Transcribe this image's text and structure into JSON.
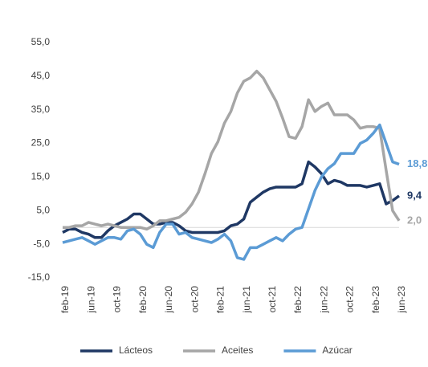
{
  "chart_data": {
    "type": "line",
    "categories": [
      "feb-19",
      null,
      null,
      null,
      "jun-19",
      null,
      null,
      null,
      "oct-19",
      null,
      null,
      null,
      "feb-20",
      null,
      null,
      null,
      "jun-20",
      null,
      null,
      null,
      "oct-20",
      null,
      null,
      null,
      "feb-21",
      null,
      null,
      null,
      "jun-21",
      null,
      null,
      null,
      "oct-21",
      null,
      null,
      null,
      "feb-22",
      null,
      null,
      null,
      "jun-22",
      null,
      null,
      null,
      "oct-22",
      null,
      null,
      null,
      "feb-23",
      null,
      null,
      null,
      "jun-23"
    ],
    "ylim": [
      -15,
      55
    ],
    "yticks": [
      {
        "value": -15,
        "label": "-15,0"
      },
      {
        "value": -5,
        "label": "-5,0"
      },
      {
        "value": 5,
        "label": "5,0"
      },
      {
        "value": 15,
        "label": "15,0"
      },
      {
        "value": 25,
        "label": "25,0"
      },
      {
        "value": 35,
        "label": "35,0"
      },
      {
        "value": 45,
        "label": "45,0"
      },
      {
        "value": 55,
        "label": "55,0"
      }
    ],
    "zero_line": true,
    "legend": "bottom",
    "series": [
      {
        "name": "Lácteos",
        "color": "#1f3864",
        "values": [
          -1.5,
          -0.5,
          -0.5,
          -1.5,
          -2,
          -3,
          -3,
          -1,
          0.5,
          1.5,
          2.5,
          4,
          4,
          2.5,
          1,
          1,
          1.5,
          1.5,
          0.5,
          -1,
          -1.5,
          -1.5,
          -1.5,
          -1.5,
          -1.5,
          -1,
          0.5,
          1,
          2.5,
          7.5,
          9,
          10.5,
          11.5,
          12,
          12,
          12,
          12,
          13,
          19.5,
          18,
          16,
          13,
          14,
          13.5,
          12.5,
          12.5,
          12.5,
          12,
          12.5,
          13,
          7,
          8,
          9.4
        ],
        "value_labels": [
          null,
          null,
          null,
          null,
          null,
          null,
          null,
          null,
          null,
          null,
          null,
          null,
          null,
          null,
          null,
          null,
          null,
          null,
          null,
          null,
          null,
          null,
          null,
          null,
          null,
          null,
          null,
          null,
          null,
          null,
          null,
          null,
          null,
          null,
          null,
          null,
          null,
          null,
          null,
          null,
          null,
          null,
          null,
          null,
          null,
          null,
          null,
          null,
          null,
          null,
          null,
          null,
          "9,4"
        ]
      },
      {
        "name": "Aceites",
        "color": "#a6a6a6",
        "values": [
          0,
          0,
          0.5,
          0.5,
          1.5,
          1,
          0.5,
          1,
          0.5,
          0,
          0,
          0,
          0,
          -0.5,
          0.5,
          2,
          2,
          2.5,
          3,
          4.5,
          7,
          10.5,
          16,
          22,
          25.5,
          31,
          34.5,
          40,
          43.5,
          44.5,
          46.5,
          44.5,
          41,
          37.5,
          32.5,
          27,
          26.5,
          30,
          38,
          34.5,
          36,
          37,
          33.5,
          33.5,
          33.5,
          32,
          29.5,
          30,
          30,
          29.5,
          17,
          5,
          2.0
        ],
        "value_labels": [
          null,
          null,
          null,
          null,
          null,
          null,
          null,
          null,
          null,
          null,
          null,
          null,
          null,
          null,
          null,
          null,
          null,
          null,
          null,
          null,
          null,
          null,
          null,
          null,
          null,
          null,
          null,
          null,
          null,
          null,
          null,
          null,
          null,
          null,
          null,
          null,
          null,
          null,
          null,
          null,
          null,
          null,
          null,
          null,
          null,
          null,
          null,
          null,
          null,
          null,
          null,
          null,
          "2,0"
        ]
      },
      {
        "name": "Azúcar",
        "color": "#5b9bd5",
        "values": [
          -4.5,
          -4,
          -3.5,
          -3,
          -4,
          -5,
          -4,
          -3,
          -3,
          -3.5,
          -1,
          -0.5,
          -2,
          -5,
          -6,
          -1.5,
          1,
          1,
          -2,
          -1.5,
          -3,
          -3.5,
          -4,
          -4.5,
          -3.5,
          -2,
          -4,
          -9,
          -9.5,
          -6,
          -6,
          -5,
          -4,
          -3,
          -4,
          -2,
          -0.5,
          0,
          5.5,
          11,
          15,
          17.5,
          19,
          22,
          22,
          22,
          25,
          26,
          28,
          30.5,
          25,
          19.5,
          18.8
        ],
        "value_labels": [
          null,
          null,
          null,
          null,
          null,
          null,
          null,
          null,
          null,
          null,
          null,
          null,
          null,
          null,
          null,
          null,
          null,
          null,
          null,
          null,
          null,
          null,
          null,
          null,
          null,
          null,
          null,
          null,
          null,
          null,
          null,
          null,
          null,
          null,
          null,
          null,
          null,
          null,
          null,
          null,
          null,
          null,
          null,
          null,
          null,
          null,
          null,
          null,
          null,
          null,
          null,
          null,
          "18,8"
        ]
      }
    ]
  }
}
